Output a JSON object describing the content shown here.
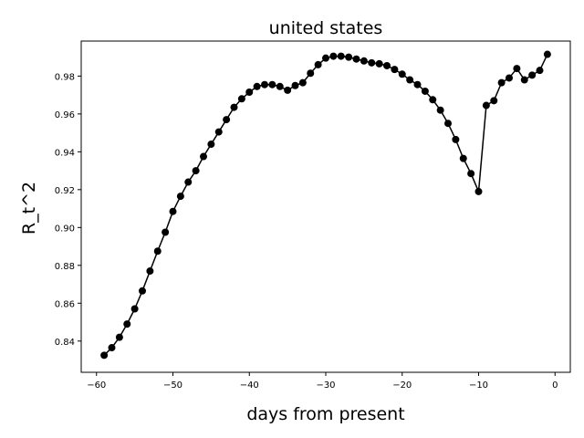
{
  "chart_data": {
    "type": "line",
    "title": "united states",
    "xlabel": "days from present",
    "ylabel": "R_t^2",
    "xlim": [
      -62,
      2
    ],
    "ylim": [
      0.8235,
      0.9985
    ],
    "xticks": [
      -60,
      -50,
      -40,
      -30,
      -20,
      -10,
      0
    ],
    "xtick_labels": [
      "−60",
      "−50",
      "−40",
      "−30",
      "−20",
      "−10",
      "0"
    ],
    "yticks": [
      0.84,
      0.86,
      0.88,
      0.9,
      0.92,
      0.94,
      0.96,
      0.98
    ],
    "ytick_labels": [
      "0.84",
      "0.86",
      "0.88",
      "0.90",
      "0.92",
      "0.94",
      "0.96",
      "0.98"
    ],
    "grid": false,
    "marker": "circle",
    "color": "#000000",
    "series": [
      {
        "x": [
          -59,
          -58,
          -57,
          -56,
          -55,
          -54,
          -53,
          -52,
          -51,
          -50,
          -49,
          -48,
          -47,
          -46,
          -45,
          -44,
          -43,
          -42,
          -41,
          -40,
          -39,
          -38,
          -37,
          -36,
          -35,
          -34,
          -33,
          -32,
          -31,
          -30,
          -29,
          -28,
          -27,
          -26,
          -25,
          -24,
          -23,
          -22,
          -21,
          -20,
          -19,
          -18,
          -17,
          -16,
          -15,
          -14,
          -13,
          -12,
          -11,
          -10,
          -9,
          -8,
          -7,
          -6,
          -5,
          -4,
          -3,
          -2,
          -1
        ],
        "y": [
          0.8325,
          0.8365,
          0.842,
          0.849,
          0.857,
          0.8665,
          0.877,
          0.8875,
          0.8975,
          0.9085,
          0.9165,
          0.924,
          0.93,
          0.9375,
          0.944,
          0.9505,
          0.957,
          0.9635,
          0.968,
          0.9715,
          0.9745,
          0.9755,
          0.9755,
          0.9745,
          0.9725,
          0.975,
          0.9765,
          0.9815,
          0.986,
          0.9895,
          0.9905,
          0.9905,
          0.99,
          0.989,
          0.988,
          0.987,
          0.9865,
          0.9855,
          0.9835,
          0.981,
          0.978,
          0.9755,
          0.972,
          0.9675,
          0.962,
          0.955,
          0.9465,
          0.9365,
          0.9285,
          0.919,
          0.9645,
          0.967,
          0.9765,
          0.979,
          0.984,
          0.978,
          0.9805,
          0.983,
          0.9915
        ]
      }
    ]
  }
}
